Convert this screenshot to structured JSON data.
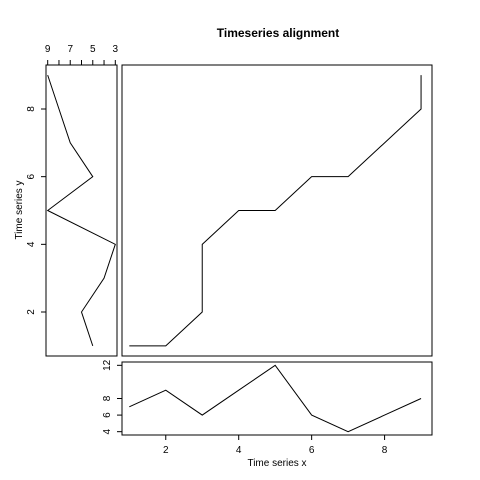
{
  "chart_data": {
    "title": "Timeseries alignment",
    "panels": [
      {
        "id": "alignment",
        "type": "line",
        "xlabel": "Time series x",
        "ylabel": "Time series y",
        "xlim": [
          0.8,
          9.3
        ],
        "ylim": [
          0.7,
          9.3
        ],
        "x": [
          1,
          2,
          3,
          3,
          4,
          5,
          6,
          7,
          8,
          9,
          9
        ],
        "y": [
          1,
          1,
          2,
          4,
          5,
          5,
          6,
          6,
          7,
          8,
          9
        ],
        "xticks": [
          2,
          4,
          6,
          8
        ],
        "yticks": [
          2,
          4,
          6,
          8
        ]
      },
      {
        "id": "series-x",
        "type": "line",
        "xlim": [
          0.8,
          9.3
        ],
        "ylim": [
          3.6,
          12.4
        ],
        "x": [
          1,
          2,
          3,
          4,
          5,
          6,
          7,
          8,
          9
        ],
        "y": [
          7,
          9,
          6,
          9,
          12,
          6,
          4,
          6,
          8
        ],
        "yticks": [
          4,
          6,
          8,
          12
        ]
      },
      {
        "id": "series-y",
        "type": "line",
        "reversed_x": true,
        "xlim": [
          9.15,
          2.85
        ],
        "ylim": [
          0.7,
          9.3
        ],
        "index": [
          1,
          2,
          3,
          4,
          5,
          6,
          7,
          8,
          9
        ],
        "values": [
          5,
          6,
          4,
          3,
          9,
          5,
          7,
          8,
          9
        ],
        "xticks": [
          9,
          7,
          5,
          3
        ]
      }
    ]
  }
}
